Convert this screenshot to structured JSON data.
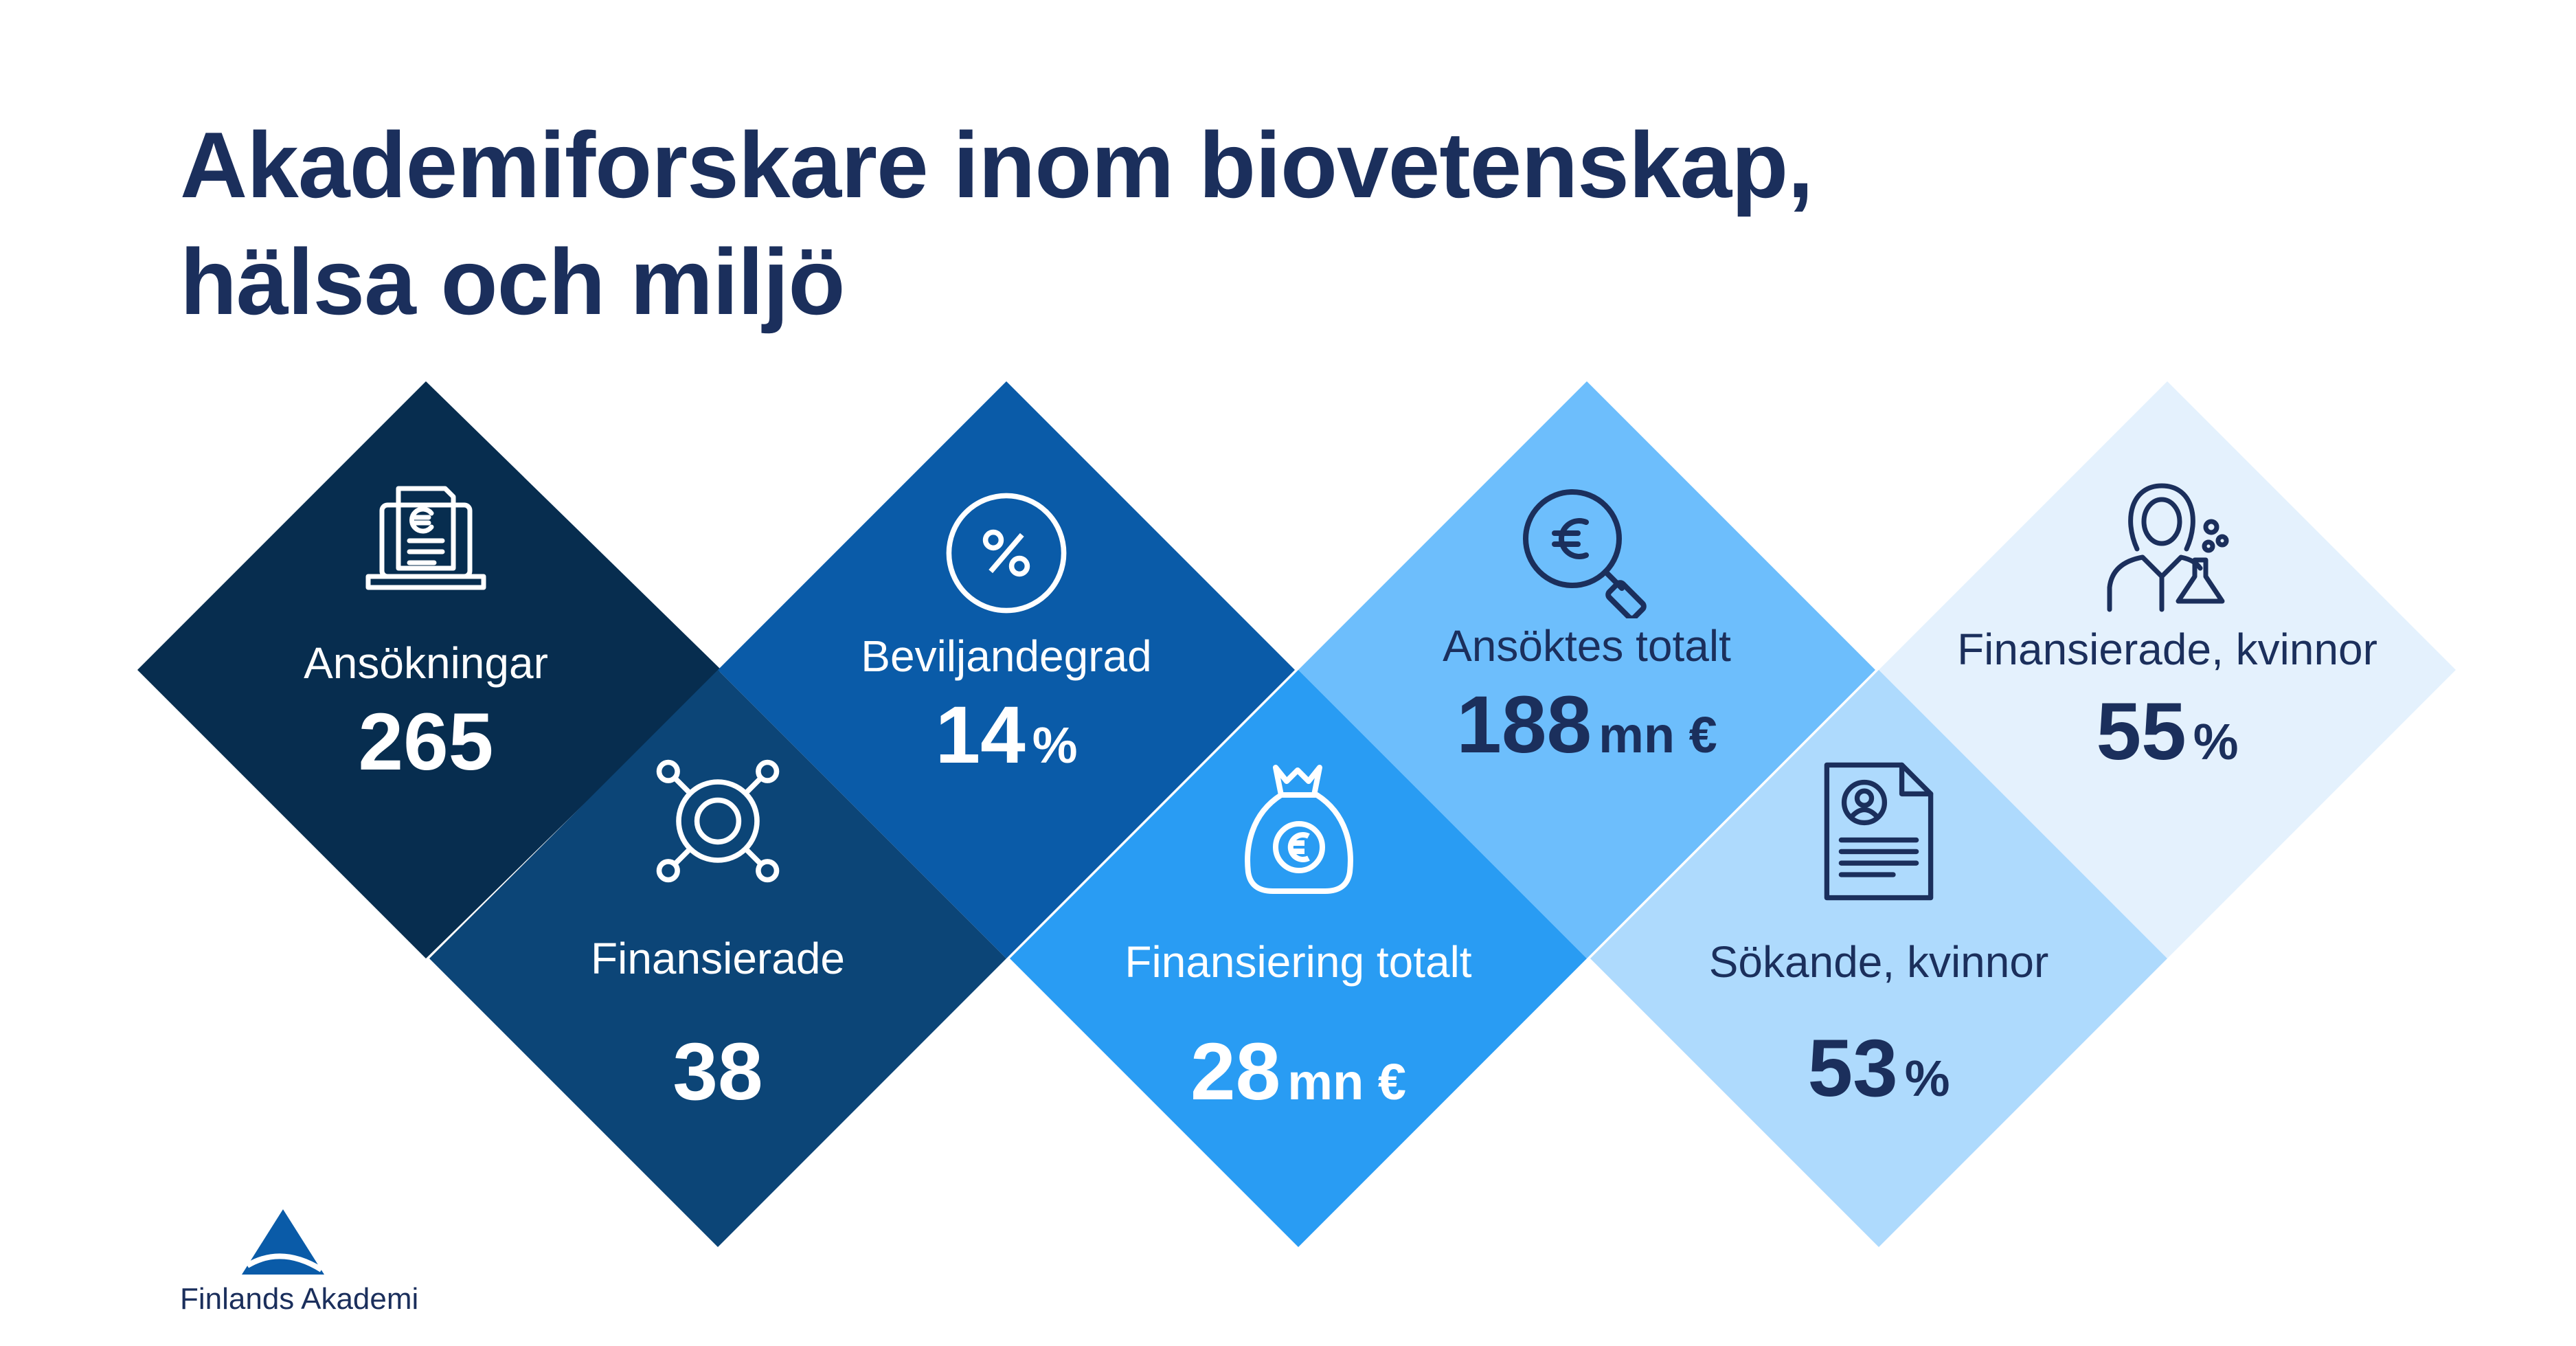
{
  "title": {
    "line1": "Akademiforskare inom biovetenskap,",
    "line2": "hälsa och miljö"
  },
  "colors": {
    "title": "#1b2f5c",
    "tile_1": "#072d4f",
    "tile_2": "#0c4577",
    "tile_3": "#0a5ba8",
    "tile_4": "#299cf3",
    "tile_5": "#6dbefc",
    "tile_6": "#aedafd",
    "tile_7": "#e4f1fd"
  },
  "stats": {
    "ansokningar": {
      "label": "Ansökningar",
      "value": "265",
      "unit": "",
      "icon": "euro-laptop-icon"
    },
    "finansierade": {
      "label": "Finansierade",
      "value": "38",
      "unit": "",
      "icon": "ring-network-icon"
    },
    "beviljandegrad": {
      "label": "Beviljandegrad",
      "value": "14",
      "unit": "%",
      "icon": "percent-circle-icon"
    },
    "finansiering_totalt": {
      "label": "Finansiering totalt",
      "value": "28",
      "unit": "mn €",
      "icon": "money-bag-icon"
    },
    "ansoktes_totalt": {
      "label": "Ansöktes totalt",
      "value": "188",
      "unit": "mn €",
      "icon": "euro-magnifier-icon"
    },
    "sokande_kvinnor": {
      "label": "Sökande, kvinnor",
      "value": "53",
      "unit": "%",
      "icon": "profile-document-icon"
    },
    "finansierade_kvinnor": {
      "label": "Finansierade, kvinnor",
      "value": "55",
      "unit": "%",
      "icon": "female-scientist-icon"
    }
  },
  "logo": {
    "name": "Finlands Akademi",
    "icon": "akademi-triangle-logo-icon"
  }
}
